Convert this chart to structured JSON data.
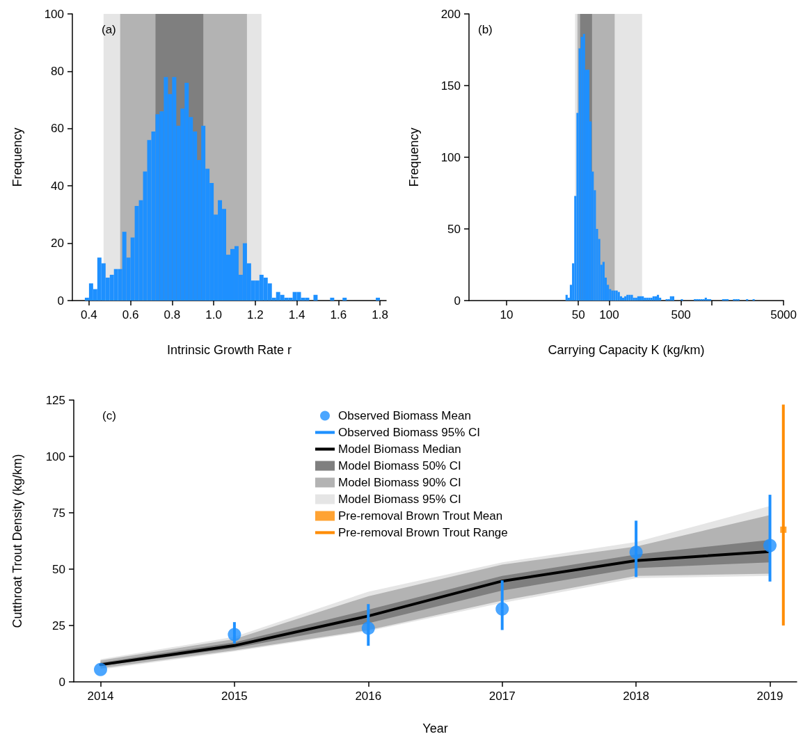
{
  "chart_data": [
    {
      "type": "histogram",
      "xlabel": "Intrinsic Growth Rate r",
      "ylabel": "Frequency",
      "annotations": [
        "(a)"
      ],
      "color": "#1e90ff",
      "bins": [
        0.38,
        0.4,
        0.42,
        0.44,
        0.46,
        0.48,
        0.5,
        0.52,
        0.54,
        0.56,
        0.58,
        0.6,
        0.62,
        0.64,
        0.66,
        0.68,
        0.7,
        0.72,
        0.74,
        0.76,
        0.78,
        0.8,
        0.82,
        0.84,
        0.86,
        0.88,
        0.9,
        0.92,
        0.94,
        0.96,
        0.98,
        1,
        1.02,
        1.04,
        1.06,
        1.08,
        1.1,
        1.12,
        1.14,
        1.16,
        1.18,
        1.2,
        1.22,
        1.24,
        1.26,
        1.28,
        1.3,
        1.32,
        1.34,
        1.36,
        1.38,
        1.4,
        1.42,
        1.44,
        1.46,
        1.48,
        1.5,
        1.52,
        1.54,
        1.56,
        1.58,
        1.6,
        1.62,
        1.64,
        1.66,
        1.68,
        1.7,
        1.72,
        1.74,
        1.76,
        1.78,
        1.8
      ],
      "values": [
        1,
        6,
        4,
        15,
        13,
        8,
        9,
        11,
        11,
        24,
        15,
        22,
        33,
        35,
        45,
        56,
        59,
        65,
        66,
        78,
        72,
        78,
        61,
        67,
        76,
        64,
        59,
        49,
        61,
        46,
        41,
        30,
        35,
        32,
        16,
        18,
        19,
        9,
        20,
        13,
        7,
        7,
        9,
        8,
        6,
        1,
        3,
        2,
        1,
        1,
        3,
        3,
        1,
        1,
        0,
        2,
        0,
        0,
        0,
        1,
        0,
        0,
        1,
        0,
        0,
        0,
        0,
        0,
        0,
        0,
        1
      ],
      "xlim": [
        0.32,
        1.83
      ],
      "xticks": [
        0.4,
        0.6,
        0.8,
        {
          "value": 1,
          "label": "1.0"
        },
        1.2,
        1.4,
        1.6,
        1.8
      ],
      "ylim": [
        0,
        100
      ],
      "yticks": [
        0,
        20,
        40,
        60,
        80,
        100
      ],
      "bands": [
        {
          "axis": "x",
          "from": 0.47,
          "to": 1.23,
          "color": "#e5e5e5"
        },
        {
          "axis": "x",
          "from": 0.55,
          "to": 1.16,
          "color": "#b3b3b3"
        },
        {
          "axis": "x",
          "from": 0.72,
          "to": 0.95,
          "color": "#7f7f7f"
        }
      ]
    },
    {
      "type": "histogram",
      "xlabel": "Carrying Capacity K (kg/km)",
      "ylabel": "Frequency",
      "annotations": [
        "(b)"
      ],
      "color": "#1e90ff",
      "log": "x",
      "bins": [
        37.5,
        39.4,
        41.3,
        43.4,
        45.6,
        47.9,
        50.3,
        52.8,
        55.4,
        58.2,
        61.1,
        64.1,
        67.3,
        70.7,
        74.2,
        77.9,
        81.8,
        85.9,
        90.2,
        94.7,
        99.5,
        104.5,
        109.7,
        115.2,
        121,
        127,
        133.4,
        140,
        147,
        154.4,
        162.1,
        170.2,
        178.7,
        187.7,
        197.1,
        206.9,
        217.3,
        228.1,
        239.5,
        251.5,
        264.1,
        277.3,
        291.2,
        305.7,
        321,
        337.1,
        353.9,
        371.6,
        390.2,
        409.7,
        430.2,
        451.7,
        474.3,
        498,
        522.9,
        549,
        576.5,
        605.3,
        635.6,
        667.4,
        700.8,
        735.8,
        772.6,
        811.2,
        851.8,
        894.4,
        939.1,
        986,
        1035,
        1087,
        1142,
        1199,
        1259,
        1322,
        1388,
        1457,
        1530,
        1606,
        1687,
        1771,
        1860,
        1953,
        2050,
        2153,
        2260,
        2373,
        2492,
        2617
      ],
      "values": [
        4,
        2,
        11,
        26,
        73,
        131,
        176,
        184,
        186,
        161,
        161,
        125,
        90,
        77,
        50,
        43,
        25,
        27,
        16,
        11,
        8,
        7,
        7,
        7,
        6,
        3,
        2,
        3,
        4,
        4,
        4,
        2,
        2,
        3,
        3,
        3,
        2,
        2,
        2,
        2,
        3,
        3,
        4,
        2,
        0,
        0,
        1,
        1,
        3,
        3,
        0,
        0,
        0,
        1,
        0,
        0,
        0,
        0,
        0,
        1,
        1,
        1,
        1,
        1,
        2,
        1,
        1,
        0,
        0,
        0,
        0,
        0,
        1,
        1,
        1,
        0,
        0,
        1,
        1,
        1,
        0,
        0,
        0,
        1,
        0,
        0,
        1
      ],
      "xlim": [
        4.3,
        5000
      ],
      "xticks": [
        10,
        50,
        100,
        500,
        {
          "value": 1000,
          "label": null
        },
        5000
      ],
      "ylim": [
        0,
        200
      ],
      "yticks": [
        0,
        50,
        100,
        150,
        200
      ],
      "bands": [
        {
          "axis": "x",
          "from": 46.4,
          "to": 209,
          "color": "#e5e5e5"
        },
        {
          "axis": "x",
          "from": 49,
          "to": 113,
          "color": "#b3b3b3"
        },
        {
          "axis": "x",
          "from": 52,
          "to": 68,
          "color": "#7f7f7f"
        }
      ]
    },
    {
      "type": "line",
      "xlabel": "Year",
      "ylabel": "Cutthroat Trout Density (kg/km)",
      "annotations": [
        "(c)"
      ],
      "legend": "top",
      "x": [
        2014,
        2015,
        2016,
        2017,
        2018,
        2019
      ],
      "xlim": [
        2013.8,
        2019.2
      ],
      "xticks": [
        2014,
        2015,
        2016,
        2017,
        2018,
        2019
      ],
      "ylim": [
        0,
        125
      ],
      "yticks": [
        0,
        25,
        50,
        75,
        100,
        125
      ],
      "series": [
        {
          "name": "Observed Biomass Mean",
          "type": "scatter",
          "marker": "circle",
          "color": "#1e90ff",
          "values": [
            5.5,
            21,
            23.8,
            32.3,
            57.5,
            60.5
          ],
          "errors": [
            null,
            [
              17,
              26.5
            ],
            [
              16,
              34.5
            ],
            [
              23,
              45
            ],
            [
              46.5,
              71.5
            ],
            [
              44.5,
              83
            ]
          ]
        },
        {
          "name": "Observed Biomass 95% CI",
          "type": "line",
          "color": "#1e90ff",
          "values": [
            null,
            null,
            null,
            null,
            null,
            null
          ]
        },
        {
          "name": "Model Biomass Median",
          "type": "line",
          "color": "#000000",
          "values": [
            7.6,
            16.1,
            29.2,
            44.7,
            53.8,
            57.8
          ]
        },
        {
          "name": "Model Biomass 50% CI",
          "type": "area",
          "color": "#7f7f7f",
          "values": [
            null,
            null,
            null,
            null,
            null,
            null
          ],
          "lower": [
            7,
            15,
            26,
            40.5,
            50.5,
            53
          ],
          "upper": [
            8.5,
            17.5,
            32,
            47,
            56.5,
            63
          ]
        },
        {
          "name": "Model Biomass 90% CI",
          "type": "area",
          "color": "#b3b3b3",
          "values": [
            null,
            null,
            null,
            null,
            null,
            null
          ],
          "lower": [
            6,
            14,
            23,
            36,
            47,
            48
          ],
          "upper": [
            9.5,
            19,
            38,
            52,
            60,
            74
          ]
        },
        {
          "name": "Model Biomass 95% CI",
          "type": "area",
          "color": "#e5e5e5",
          "values": [
            null,
            null,
            null,
            null,
            null,
            null
          ],
          "lower": [
            5.5,
            13.5,
            22.5,
            35,
            46,
            47
          ],
          "upper": [
            10,
            20,
            40,
            53,
            62,
            78
          ]
        },
        {
          "name": "Pre-removal Brown Trout Mean",
          "type": "scatter",
          "marker": "square",
          "color": "#ff8c00",
          "x": [
            2019.1
          ],
          "values": [
            67.5
          ],
          "errors": [
            [
              25,
              123
            ]
          ]
        },
        {
          "name": "Pre-removal Brown Trout Range",
          "type": "line",
          "color": "#ff8c00",
          "values": [
            null,
            null,
            null,
            null,
            null,
            null
          ]
        }
      ]
    }
  ]
}
